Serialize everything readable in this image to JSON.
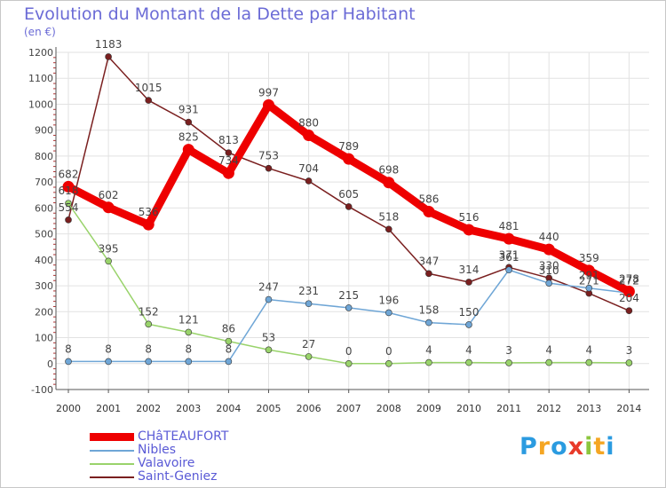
{
  "title": "Evolution du Montant de la Dette par Habitant",
  "unit_label": "(en €)",
  "brand": {
    "letters": [
      "P",
      "r",
      "o",
      "x",
      "i",
      "t",
      "i"
    ],
    "colors": [
      "#2b9be0",
      "#f5a623",
      "#2b9be0",
      "#e83a2a",
      "#8cc63e",
      "#f5a623",
      "#2b9be0"
    ]
  },
  "chart_data": {
    "type": "line",
    "title": "Evolution du Montant de la Dette par Habitant",
    "ylabel": "(en €)",
    "xlabel": "",
    "x": [
      "2000",
      "2001",
      "2002",
      "2003",
      "2004",
      "2005",
      "2006",
      "2007",
      "2008",
      "2009",
      "2010",
      "2011",
      "2012",
      "2013",
      "2014"
    ],
    "ylim": [
      -100,
      1200
    ],
    "yticks": [
      "-100",
      "0",
      "100",
      "200",
      "300",
      "400",
      "500",
      "600",
      "700",
      "800",
      "900",
      "1000",
      "1100",
      "1200"
    ],
    "grid": true,
    "legend_position": "bottom-left",
    "series": [
      {
        "name": "Saint-Geniez",
        "color": "#7a1f1f",
        "values": [
          554,
          1183,
          1015,
          931,
          813,
          753,
          704,
          605,
          518,
          347,
          314,
          371,
          330,
          271,
          204
        ],
        "labels": [
          "554",
          "1183",
          "1015",
          "931",
          "813",
          "753",
          "704",
          "605",
          "518",
          "347",
          "314",
          "371",
          "330",
          "271",
          "204"
        ]
      },
      {
        "name": "Valavoire",
        "color": "#99d36b",
        "values": [
          618,
          395,
          152,
          121,
          86,
          53,
          27,
          0,
          0,
          4,
          4,
          3,
          4,
          4,
          3
        ],
        "labels": [
          "618",
          "395",
          "152",
          "121",
          "86",
          "53",
          "27",
          "0",
          "0",
          "4",
          "4",
          "3",
          "4",
          "4",
          "3"
        ]
      },
      {
        "name": "Nibles",
        "color": "#6fa6d6",
        "values": [
          8,
          8,
          8,
          8,
          8,
          247,
          231,
          215,
          196,
          158,
          150,
          361,
          310,
          291,
          272
        ],
        "labels": [
          "8",
          "8",
          "8",
          "8",
          "8",
          "247",
          "231",
          "215",
          "196",
          "158",
          "150",
          "361",
          "310",
          "291",
          "272"
        ]
      },
      {
        "name": "CHâTEAUFORT",
        "color": "#ee0000",
        "values": [
          682,
          602,
          536,
          825,
          734,
          997,
          880,
          789,
          698,
          586,
          516,
          481,
          440,
          359,
          278
        ],
        "labels": [
          "682",
          "602",
          "536",
          "825",
          "734",
          "997",
          "880",
          "789",
          "698",
          "586",
          "516",
          "481",
          "440",
          "359",
          "278"
        ]
      }
    ]
  }
}
